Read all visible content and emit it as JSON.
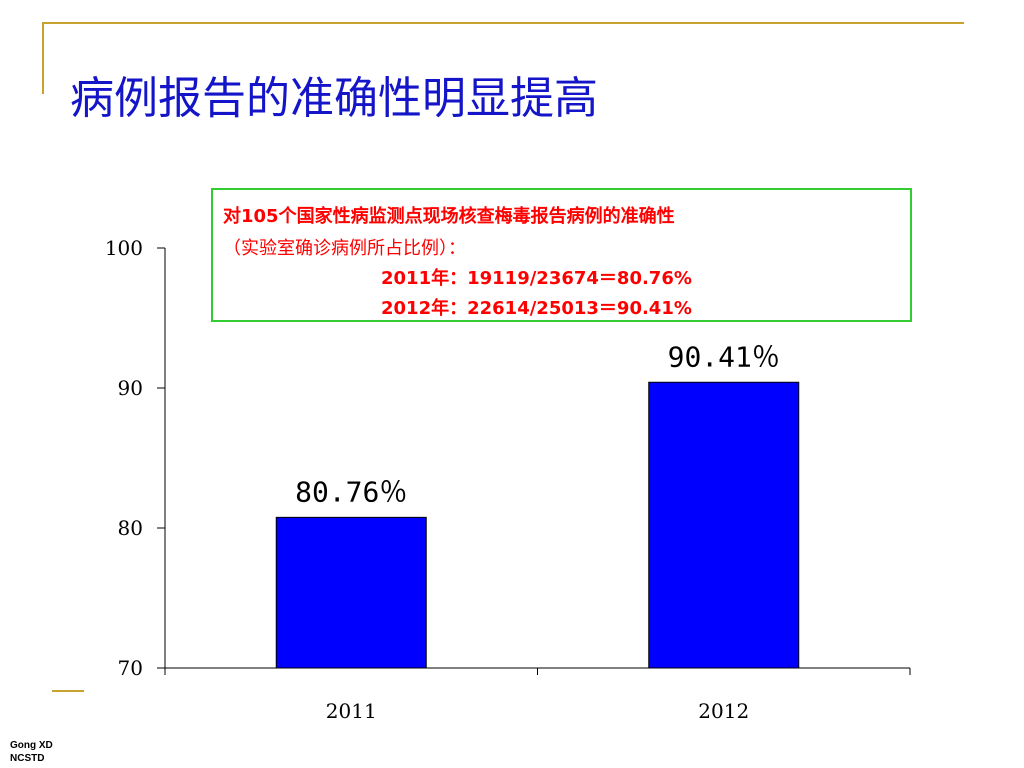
{
  "slide": {
    "title": "病例报告的准确性明显提高",
    "footer_line1": "Gong XD",
    "footer_line2": "NCSTD"
  },
  "note": {
    "line1": "对105个国家性病监测点现场核查梅毒报告病例的准确性",
    "line2": "（实验室确诊病例所占比例）：",
    "line3": "2011年：19119/23674＝80.76%",
    "line4": "2012年：22614/25013＝90.41%"
  },
  "colors": {
    "title": "#1414C8",
    "bar": "#0000FF",
    "note_text": "#FF0000",
    "note_border": "#33CC33",
    "accent": "#C8A22F"
  },
  "chart_data": {
    "type": "bar",
    "categories": [
      "2011",
      "2012"
    ],
    "values": [
      80.76,
      90.41
    ],
    "data_labels": [
      "80.76％",
      "90.41％"
    ],
    "ylim": [
      70,
      100
    ],
    "yticks": [
      70,
      80,
      90,
      100
    ],
    "title": "",
    "xlabel": "",
    "ylabel": "",
    "grid": false,
    "legend": "none"
  }
}
